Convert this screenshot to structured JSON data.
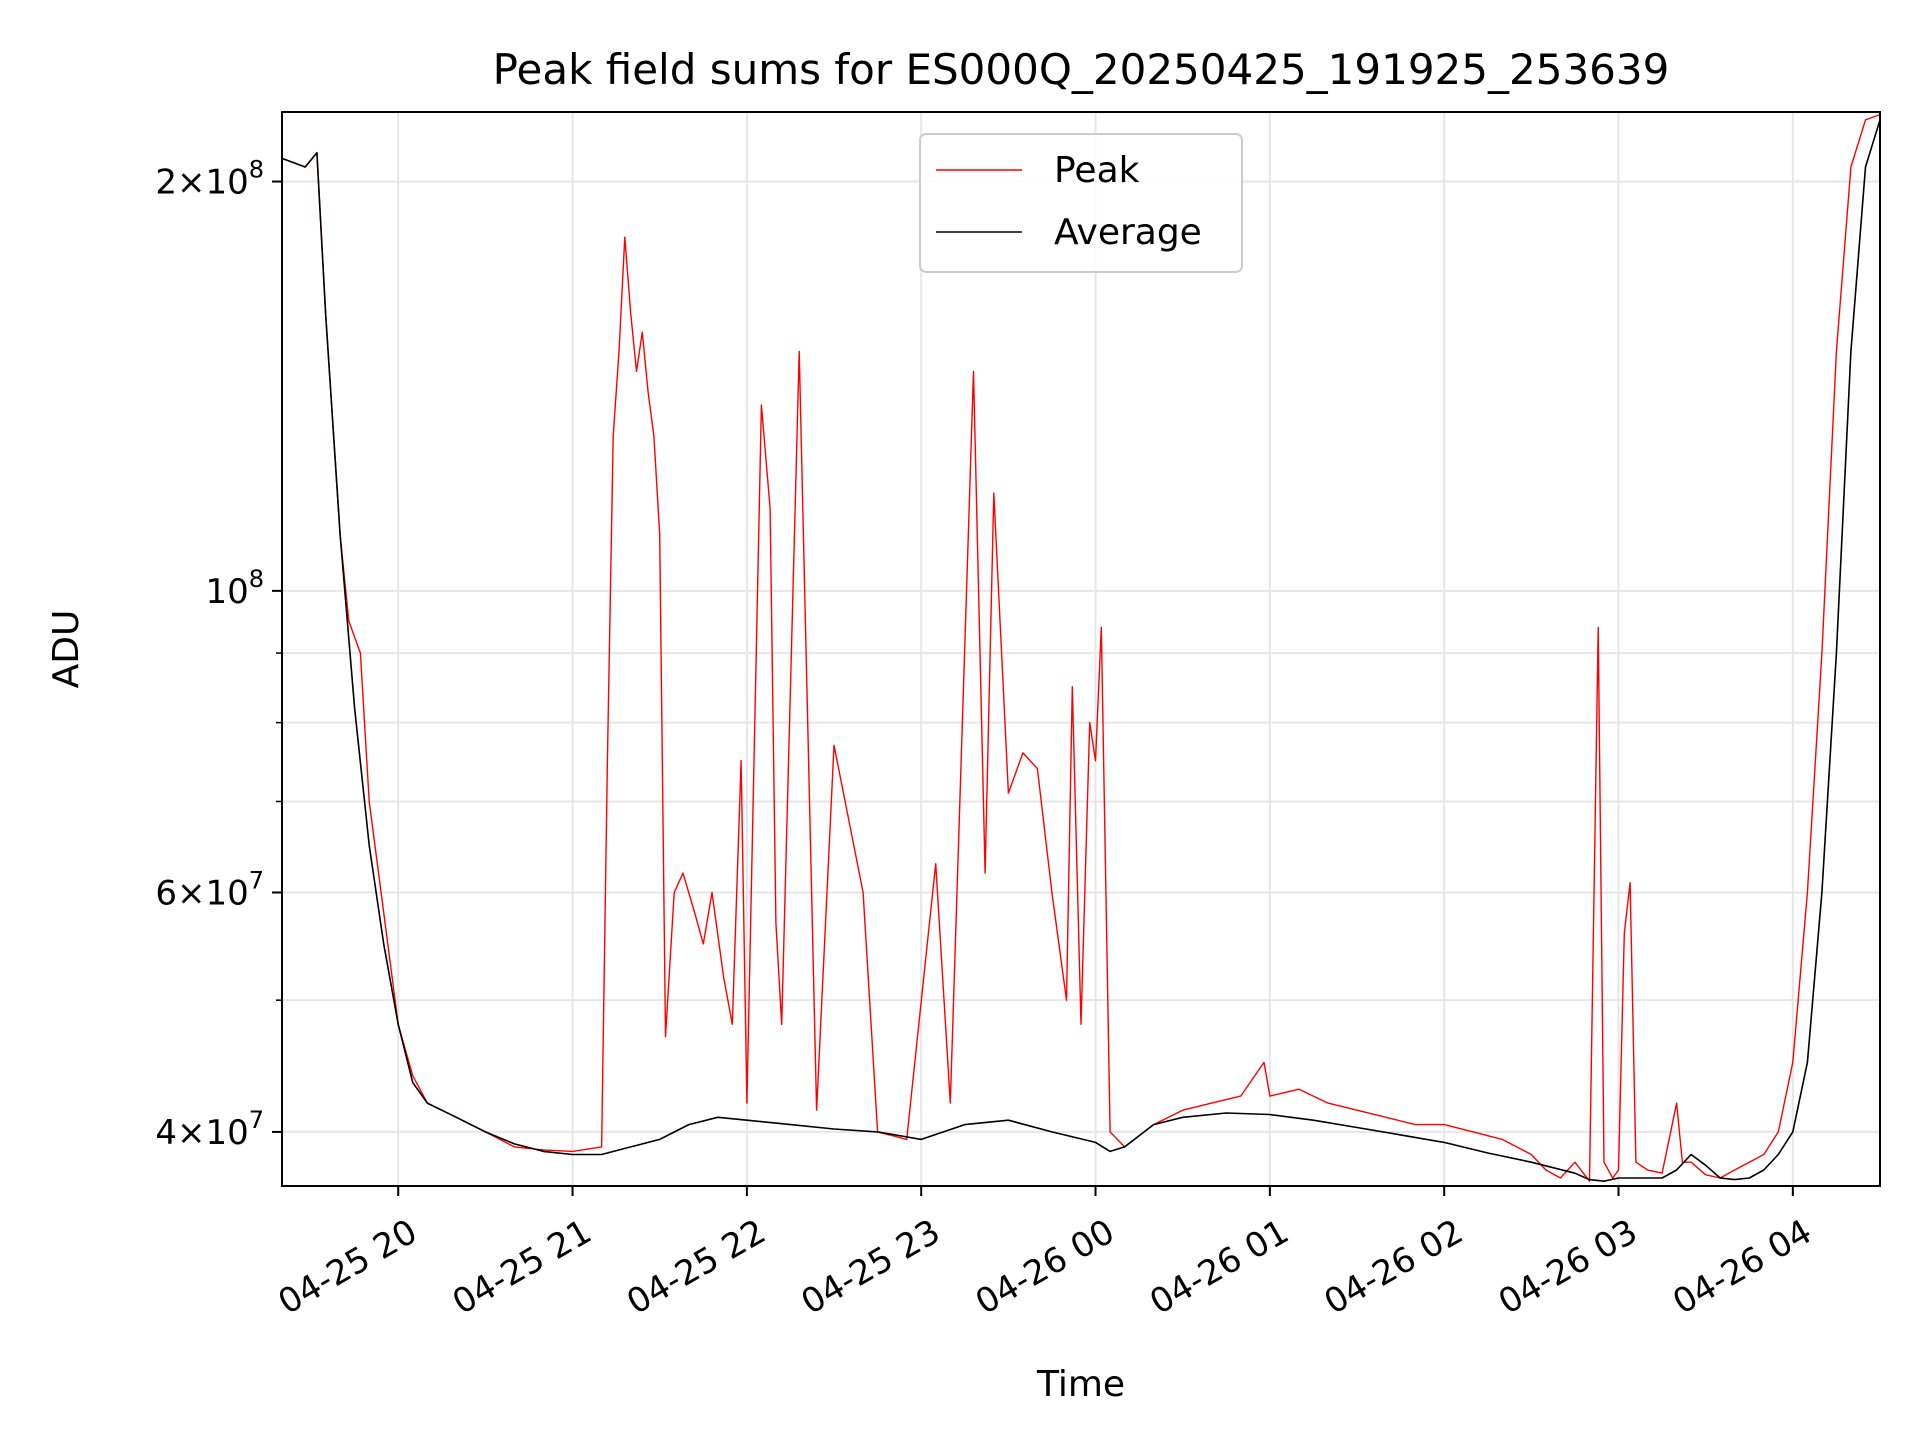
{
  "chart_data": {
    "type": "line",
    "title": "Peak field sums for ES000Q_20250425_191925_253639",
    "xlabel": "Time",
    "ylabel": "ADU",
    "yscale": "log",
    "grid": true,
    "legend_placement": "upper-center",
    "xlim": [
      "04-25 19:20",
      "04-26 04:30"
    ],
    "ylim": [
      36500000,
      225000000
    ],
    "x_ticks": [
      "04-25 20",
      "04-25 21",
      "04-25 22",
      "04-25 23",
      "04-26 00",
      "04-26 01",
      "04-26 02",
      "04-26 03",
      "04-26 04"
    ],
    "y_ticks": [
      {
        "value": 40000000,
        "mant": "4",
        "exp": "7"
      },
      {
        "value": 60000000,
        "mant": "6",
        "exp": "7"
      },
      {
        "value": 100000000,
        "mant": "",
        "exp": "8"
      },
      {
        "value": 200000000,
        "mant": "2",
        "exp": "8"
      }
    ],
    "y_minor_ticks": [
      50000000,
      70000000,
      80000000,
      90000000
    ],
    "series": [
      {
        "name": "Peak",
        "color": "#ff0000",
        "x": [
          "04-25 19:20",
          "04-25 19:28",
          "04-25 19:32",
          "04-25 19:35",
          "04-25 19:40",
          "04-25 19:43",
          "04-25 19:47",
          "04-25 19:50",
          "04-25 19:55",
          "04-25 20:00",
          "04-25 20:05",
          "04-25 20:10",
          "04-25 20:20",
          "04-25 20:30",
          "04-25 20:40",
          "04-25 20:50",
          "04-25 21:00",
          "04-25 21:10",
          "04-25 21:12",
          "04-25 21:14",
          "04-25 21:16",
          "04-25 21:18",
          "04-25 21:20",
          "04-25 21:22",
          "04-25 21:24",
          "04-25 21:26",
          "04-25 21:28",
          "04-25 21:30",
          "04-25 21:32",
          "04-25 21:35",
          "04-25 21:38",
          "04-25 21:42",
          "04-25 21:45",
          "04-25 21:48",
          "04-25 21:52",
          "04-25 21:55",
          "04-25 21:58",
          "04-25 22:00",
          "04-25 22:05",
          "04-25 22:08",
          "04-25 22:10",
          "04-25 22:12",
          "04-25 22:18",
          "04-25 22:24",
          "04-25 22:30",
          "04-25 22:40",
          "04-25 22:45",
          "04-25 22:55",
          "04-25 23:05",
          "04-25 23:10",
          "04-25 23:18",
          "04-25 23:22",
          "04-25 23:25",
          "04-25 23:30",
          "04-25 23:35",
          "04-25 23:40",
          "04-25 23:45",
          "04-25 23:50",
          "04-25 23:52",
          "04-25 23:55",
          "04-25 23:58",
          "04-26 00:00",
          "04-26 00:02",
          "04-26 00:05",
          "04-26 00:10",
          "04-26 00:20",
          "04-26 00:30",
          "04-26 00:40",
          "04-26 00:50",
          "04-26 00:58",
          "04-26 01:00",
          "04-26 01:10",
          "04-26 01:20",
          "04-26 01:30",
          "04-26 01:40",
          "04-26 01:50",
          "04-26 02:00",
          "04-26 02:10",
          "04-26 02:20",
          "04-26 02:30",
          "04-26 02:35",
          "04-26 02:40",
          "04-26 02:45",
          "04-26 02:50",
          "04-26 02:53",
          "04-26 02:55",
          "04-26 02:58",
          "04-26 03:00",
          "04-26 03:02",
          "04-26 03:04",
          "04-26 03:06",
          "04-26 03:10",
          "04-26 03:15",
          "04-26 03:20",
          "04-26 03:22",
          "04-26 03:25",
          "04-26 03:30",
          "04-26 03:35",
          "04-26 03:40",
          "04-26 03:45",
          "04-26 03:50",
          "04-26 03:55",
          "04-26 04:00",
          "04-26 04:05",
          "04-26 04:10",
          "04-26 04:15",
          "04-26 04:20",
          "04-26 04:25",
          "04-26 04:30"
        ],
        "y": [
          208000000,
          205000000,
          210000000,
          160000000,
          110000000,
          95000000,
          90000000,
          70000000,
          58000000,
          48000000,
          44000000,
          42000000,
          41000000,
          40000000,
          39000000,
          38800000,
          38700000,
          39000000,
          75000000,
          130000000,
          150000000,
          182000000,
          160000000,
          145000000,
          155000000,
          140000000,
          130000000,
          110000000,
          47000000,
          60000000,
          62000000,
          58000000,
          55000000,
          60000000,
          52000000,
          48000000,
          75000000,
          42000000,
          137000000,
          115000000,
          57000000,
          48000000,
          150000000,
          41500000,
          77000000,
          60000000,
          40000000,
          39500000,
          63000000,
          42000000,
          145000000,
          62000000,
          118000000,
          71000000,
          76000000,
          74000000,
          60000000,
          50000000,
          85000000,
          48000000,
          80000000,
          75000000,
          94000000,
          40000000,
          39000000,
          40500000,
          41500000,
          42000000,
          42500000,
          45000000,
          42500000,
          43000000,
          42000000,
          41500000,
          41000000,
          40500000,
          40500000,
          40000000,
          39500000,
          38500000,
          37500000,
          37000000,
          38000000,
          36800000,
          94000000,
          38000000,
          37000000,
          37500000,
          56000000,
          61000000,
          38000000,
          37500000,
          37300000,
          42000000,
          38000000,
          38000000,
          37200000,
          37000000,
          37500000,
          38000000,
          38500000,
          40000000,
          45000000,
          60000000,
          90000000,
          150000000,
          205000000,
          222000000,
          224000000
        ]
      },
      {
        "name": "Average",
        "color": "#000000",
        "x": [
          "04-25 19:20",
          "04-25 19:28",
          "04-25 19:32",
          "04-25 19:35",
          "04-25 19:40",
          "04-25 19:45",
          "04-25 19:50",
          "04-25 19:55",
          "04-25 20:00",
          "04-25 20:05",
          "04-25 20:10",
          "04-25 20:15",
          "04-25 20:20",
          "04-25 20:30",
          "04-25 20:40",
          "04-25 20:50",
          "04-25 21:00",
          "04-25 21:10",
          "04-25 21:20",
          "04-25 21:30",
          "04-25 21:40",
          "04-25 21:50",
          "04-25 22:00",
          "04-25 22:15",
          "04-25 22:30",
          "04-25 22:45",
          "04-25 23:00",
          "04-25 23:15",
          "04-25 23:30",
          "04-25 23:45",
          "04-26 00:00",
          "04-26 00:05",
          "04-26 00:10",
          "04-26 00:20",
          "04-26 00:30",
          "04-26 00:45",
          "04-26 01:00",
          "04-26 01:15",
          "04-26 01:30",
          "04-26 01:45",
          "04-26 02:00",
          "04-26 02:15",
          "04-26 02:30",
          "04-26 02:45",
          "04-26 02:50",
          "04-26 02:55",
          "04-26 03:00",
          "04-26 03:10",
          "04-26 03:15",
          "04-26 03:20",
          "04-26 03:25",
          "04-26 03:30",
          "04-26 03:35",
          "04-26 03:40",
          "04-26 03:45",
          "04-26 03:50",
          "04-26 03:55",
          "04-26 04:00",
          "04-26 04:05",
          "04-26 04:10",
          "04-26 04:15",
          "04-26 04:20",
          "04-26 04:25",
          "04-26 04:30"
        ],
        "y": [
          208000000,
          205000000,
          210000000,
          160000000,
          110000000,
          82000000,
          65000000,
          55000000,
          48000000,
          43500000,
          42000000,
          41500000,
          41000000,
          40000000,
          39200000,
          38700000,
          38500000,
          38500000,
          39000000,
          39500000,
          40500000,
          41000000,
          40800000,
          40500000,
          40200000,
          40000000,
          39500000,
          40500000,
          40800000,
          40000000,
          39300000,
          38700000,
          39000000,
          40500000,
          41000000,
          41300000,
          41200000,
          40800000,
          40300000,
          39800000,
          39300000,
          38600000,
          38000000,
          37300000,
          36900000,
          36800000,
          37000000,
          37000000,
          37000000,
          37500000,
          38500000,
          37800000,
          37000000,
          36900000,
          37000000,
          37500000,
          38500000,
          40000000,
          45000000,
          60000000,
          90000000,
          150000000,
          205000000,
          222000000
        ]
      }
    ]
  }
}
